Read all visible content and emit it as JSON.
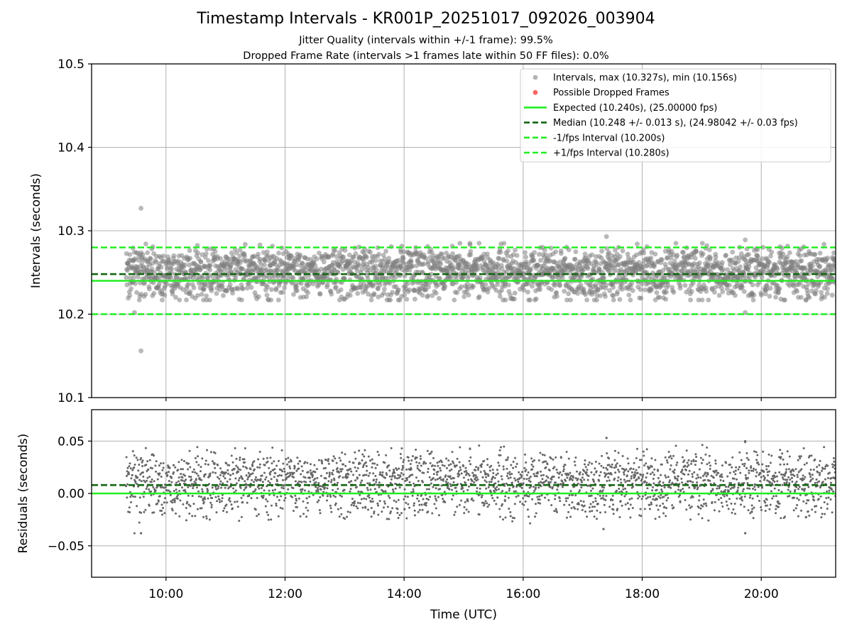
{
  "chart_data": {
    "type": "scatter",
    "title": "Timestamp Intervals - KR001P_20251017_092026_003904",
    "subtitle_lines": [
      "Jitter Quality (intervals within +/-1 frame): 99.5%",
      "Dropped Frame Rate (intervals >1 frames late within 50 FF files): 0.0%"
    ],
    "xlabel": "Time (UTC)",
    "x_range_hours": [
      8.75,
      21.25
    ],
    "x_ticks": [
      {
        "value": 10,
        "label": "10:00"
      },
      {
        "value": 12,
        "label": "12:00"
      },
      {
        "value": 14,
        "label": "14:00"
      },
      {
        "value": 16,
        "label": "16:00"
      },
      {
        "value": 18,
        "label": "18:00"
      },
      {
        "value": 20,
        "label": "20:00"
      }
    ],
    "data_time_range_hours": [
      9.33,
      21.25
    ],
    "grid": true,
    "panels": [
      {
        "name": "intervals",
        "ylabel": "Intervals (seconds)",
        "ylim": [
          10.1,
          10.5
        ],
        "y_ticks": [
          {
            "value": 10.1,
            "label": "10.1"
          },
          {
            "value": 10.2,
            "label": "10.2"
          },
          {
            "value": 10.3,
            "label": "10.3"
          },
          {
            "value": 10.4,
            "label": "10.4"
          },
          {
            "value": 10.5,
            "label": "10.5"
          }
        ],
        "series": [
          {
            "name": "Intervals, max (10.327s), min (10.156s)",
            "kind": "scatter",
            "color": "#808080",
            "max": 10.327,
            "min": 10.156,
            "typical_range": [
              10.215,
              10.285
            ],
            "center": 10.248,
            "cluster_levels": [
              10.234,
              10.258
            ]
          },
          {
            "name": "Possible Dropped Frames",
            "kind": "scatter",
            "color": "#ff5555",
            "count": 0
          },
          {
            "name": "Expected (10.240s), (25.00000 fps)",
            "kind": "hline",
            "value": 10.24,
            "color": "#22ee22",
            "style": "solid"
          },
          {
            "name": "Median (10.248 +/- 0.013 s), (24.98042 +/- 0.03 fps)",
            "kind": "hline",
            "value": 10.248,
            "color": "#116611",
            "style": "dashed"
          },
          {
            "name": "-1/fps Interval (10.200s)",
            "kind": "hline",
            "value": 10.2,
            "color": "#22ee22",
            "style": "dashed"
          },
          {
            "name": "+1/fps Interval (10.280s)",
            "kind": "hline",
            "value": 10.28,
            "color": "#22ee22",
            "style": "dashed"
          }
        ],
        "outliers": [
          {
            "x": 9.58,
            "y": 10.327
          },
          {
            "x": 9.58,
            "y": 10.156
          },
          {
            "x": 17.4,
            "y": 10.293
          },
          {
            "x": 19.73,
            "y": 10.289
          },
          {
            "x": 9.47,
            "y": 10.202
          },
          {
            "x": 19.73,
            "y": 10.202
          }
        ],
        "legend_location": "upper right"
      },
      {
        "name": "residuals",
        "ylabel": "Residuals (seconds)",
        "ylim": [
          -0.08,
          0.08
        ],
        "y_ticks": [
          {
            "value": 0.05,
            "label": "0.05"
          },
          {
            "value": 0.0,
            "label": "0.00"
          },
          {
            "value": -0.05,
            "label": "−0.05"
          }
        ],
        "series": [
          {
            "kind": "scatter",
            "color": "#666666",
            "typical_range": [
              -0.03,
              0.045
            ],
            "cluster_levels": [
              -0.006,
              0.018
            ],
            "extremes": [
              0.053,
              -0.038
            ]
          },
          {
            "kind": "hline",
            "value": 0.0,
            "color": "#22ee22",
            "style": "solid"
          },
          {
            "kind": "hline",
            "value": 0.008,
            "color": "#116611",
            "style": "dashed"
          }
        ],
        "outliers": [
          {
            "x": 17.4,
            "y": 0.053
          },
          {
            "x": 19.73,
            "y": 0.05
          },
          {
            "x": 9.58,
            "y": -0.038
          },
          {
            "x": 19.73,
            "y": -0.038
          },
          {
            "x": 17.35,
            "y": -0.034
          }
        ]
      }
    ]
  }
}
